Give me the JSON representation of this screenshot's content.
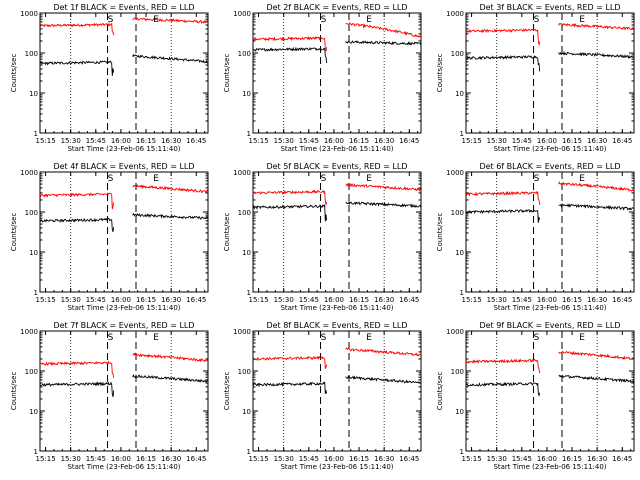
{
  "chart_data": [
    {
      "type": "line",
      "title": "Det 1f BLACK = Events, RED = LLD",
      "xlabel": "Start Time (23-Feb-06 15:11:40)",
      "ylabel": "Counts/sec",
      "yscale": "log",
      "ylim": [
        1,
        1000
      ],
      "x_ticks": [
        "15:15",
        "15:30",
        "15:45",
        "16:00",
        "16:15",
        "16:30",
        "16:45"
      ],
      "y_ticks": [
        "1",
        "10",
        "100",
        "1000"
      ],
      "markers": [
        "S",
        "E"
      ],
      "series": [
        {
          "name": "RED = LLD",
          "color": "#ff0000",
          "x_start": "15:11:40",
          "x_end": "16:52",
          "before_gap": 480,
          "after_gap": 720,
          "end": 590
        },
        {
          "name": "BLACK = Events",
          "color": "#000000",
          "x_start": "15:11:40",
          "x_end": "16:52",
          "before_gap": 55,
          "after_gap": 85,
          "end": 60
        }
      ]
    },
    {
      "type": "line",
      "title": "Det 2f BLACK = Events, RED = LLD",
      "xlabel": "Start Time (23-Feb-06 15:11:40)",
      "ylabel": "Counts/sec",
      "yscale": "log",
      "ylim": [
        1,
        1000
      ],
      "x_ticks": [
        "15:15",
        "15:30",
        "15:45",
        "16:00",
        "16:15",
        "16:30",
        "16:45"
      ],
      "y_ticks": [
        "1",
        "10",
        "100",
        "1000"
      ],
      "markers": [
        "S",
        "E"
      ],
      "series": [
        {
          "name": "RED = LLD",
          "color": "#ff0000",
          "x_start": "15:11:40",
          "x_end": "16:52",
          "before_gap": 220,
          "after_gap": 550,
          "end": 250
        },
        {
          "name": "BLACK = Events",
          "color": "#000000",
          "x_start": "15:11:40",
          "x_end": "16:52",
          "before_gap": 120,
          "after_gap": 190,
          "end": 170
        }
      ]
    },
    {
      "type": "line",
      "title": "Det 3f BLACK = Events, RED = LLD",
      "xlabel": "Start Time (23-Feb-06 15:11:40)",
      "ylabel": "Counts/sec",
      "yscale": "log",
      "ylim": [
        1,
        1000
      ],
      "x_ticks": [
        "15:15",
        "15:30",
        "15:45",
        "16:00",
        "16:15",
        "16:30",
        "16:45"
      ],
      "y_ticks": [
        "1",
        "10",
        "100",
        "1000"
      ],
      "markers": [
        "S",
        "E"
      ],
      "series": [
        {
          "name": "RED = LLD",
          "color": "#ff0000",
          "x_start": "15:11:40",
          "x_end": "16:52",
          "before_gap": 350,
          "after_gap": 520,
          "end": 400
        },
        {
          "name": "BLACK = Events",
          "color": "#000000",
          "x_start": "15:11:40",
          "x_end": "16:52",
          "before_gap": 75,
          "after_gap": 100,
          "end": 80
        }
      ]
    },
    {
      "type": "line",
      "title": "Det 4f BLACK = Events, RED = LLD",
      "xlabel": "Start Time (23-Feb-06 15:11:40)",
      "ylabel": "Counts/sec",
      "yscale": "log",
      "ylim": [
        1,
        1000
      ],
      "x_ticks": [
        "15:15",
        "15:30",
        "15:45",
        "16:00",
        "16:15",
        "16:30",
        "16:45"
      ],
      "y_ticks": [
        "1",
        "10",
        "100",
        "1000"
      ],
      "markers": [
        "S",
        "E"
      ],
      "series": [
        {
          "name": "RED = LLD",
          "color": "#ff0000",
          "x_start": "15:11:40",
          "x_end": "16:52",
          "before_gap": 260,
          "after_gap": 450,
          "end": 320
        },
        {
          "name": "BLACK = Events",
          "color": "#000000",
          "x_start": "15:11:40",
          "x_end": "16:52",
          "before_gap": 60,
          "after_gap": 85,
          "end": 70
        }
      ]
    },
    {
      "type": "line",
      "title": "Det 5f BLACK = Events, RED = LLD",
      "xlabel": "Start Time (23-Feb-06 15:11:40)",
      "ylabel": "Counts/sec",
      "yscale": "log",
      "ylim": [
        1,
        1000
      ],
      "x_ticks": [
        "15:15",
        "15:30",
        "15:45",
        "16:00",
        "16:15",
        "16:30",
        "16:45"
      ],
      "y_ticks": [
        "1",
        "10",
        "100",
        "1000"
      ],
      "markers": [
        "S",
        "E"
      ],
      "series": [
        {
          "name": "RED = LLD",
          "color": "#ff0000",
          "x_start": "15:11:40",
          "x_end": "16:52",
          "before_gap": 300,
          "after_gap": 480,
          "end": 360
        },
        {
          "name": "BLACK = Events",
          "color": "#000000",
          "x_start": "15:11:40",
          "x_end": "16:52",
          "before_gap": 130,
          "after_gap": 170,
          "end": 140
        }
      ]
    },
    {
      "type": "line",
      "title": "Det 6f BLACK = Events, RED = LLD",
      "xlabel": "Start Time (23-Feb-06 15:11:40)",
      "ylabel": "Counts/sec",
      "yscale": "log",
      "ylim": [
        1,
        1000
      ],
      "x_ticks": [
        "15:15",
        "15:30",
        "15:45",
        "16:00",
        "16:15",
        "16:30",
        "16:45"
      ],
      "y_ticks": [
        "1",
        "10",
        "100",
        "1000"
      ],
      "markers": [
        "S",
        "E"
      ],
      "series": [
        {
          "name": "RED = LLD",
          "color": "#ff0000",
          "x_start": "15:11:40",
          "x_end": "16:52",
          "before_gap": 280,
          "after_gap": 520,
          "end": 350
        },
        {
          "name": "BLACK = Events",
          "color": "#000000",
          "x_start": "15:11:40",
          "x_end": "16:52",
          "before_gap": 100,
          "after_gap": 150,
          "end": 120
        }
      ]
    },
    {
      "type": "line",
      "title": "Det 7f BLACK = Events, RED = LLD",
      "xlabel": "Start Time (23-Feb-06 15:11:40)",
      "ylabel": "Counts/sec",
      "yscale": "log",
      "ylim": [
        1,
        1000
      ],
      "x_ticks": [
        "15:15",
        "15:30",
        "15:45",
        "16:00",
        "16:15",
        "16:30",
        "16:45"
      ],
      "y_ticks": [
        "1",
        "10",
        "100",
        "1000"
      ],
      "markers": [
        "S",
        "E"
      ],
      "series": [
        {
          "name": "RED = LLD",
          "color": "#ff0000",
          "x_start": "15:11:40",
          "x_end": "16:52",
          "before_gap": 150,
          "after_gap": 260,
          "end": 180
        },
        {
          "name": "BLACK = Events",
          "color": "#000000",
          "x_start": "15:11:40",
          "x_end": "16:52",
          "before_gap": 45,
          "after_gap": 75,
          "end": 55
        }
      ]
    },
    {
      "type": "line",
      "title": "Det 8f BLACK = Events, RED = LLD",
      "xlabel": "Start Time (23-Feb-06 15:11:40)",
      "ylabel": "Counts/sec",
      "yscale": "log",
      "ylim": [
        1,
        1000
      ],
      "x_ticks": [
        "15:15",
        "15:30",
        "15:45",
        "16:00",
        "16:15",
        "16:30",
        "16:45"
      ],
      "y_ticks": [
        "1",
        "10",
        "100",
        "1000"
      ],
      "markers": [
        "S",
        "E"
      ],
      "series": [
        {
          "name": "RED = LLD",
          "color": "#ff0000",
          "x_start": "15:11:40",
          "x_end": "16:52",
          "before_gap": 200,
          "after_gap": 350,
          "end": 250
        },
        {
          "name": "BLACK = Events",
          "color": "#000000",
          "x_start": "15:11:40",
          "x_end": "16:52",
          "before_gap": 45,
          "after_gap": 70,
          "end": 50
        }
      ]
    },
    {
      "type": "line",
      "title": "Det 9f BLACK = Events, RED = LLD",
      "xlabel": "Start Time (23-Feb-06 15:11:40)",
      "ylabel": "Counts/sec",
      "yscale": "log",
      "ylim": [
        1,
        1000
      ],
      "x_ticks": [
        "15:15",
        "15:30",
        "15:45",
        "16:00",
        "16:15",
        "16:30",
        "16:45"
      ],
      "y_ticks": [
        "1",
        "10",
        "100",
        "1000"
      ],
      "markers": [
        "S",
        "E"
      ],
      "series": [
        {
          "name": "RED = LLD",
          "color": "#ff0000",
          "x_start": "15:11:40",
          "x_end": "16:52",
          "before_gap": 170,
          "after_gap": 300,
          "end": 200
        },
        {
          "name": "BLACK = Events",
          "color": "#000000",
          "x_start": "15:11:40",
          "x_end": "16:52",
          "before_gap": 45,
          "after_gap": 75,
          "end": 55
        }
      ]
    }
  ]
}
